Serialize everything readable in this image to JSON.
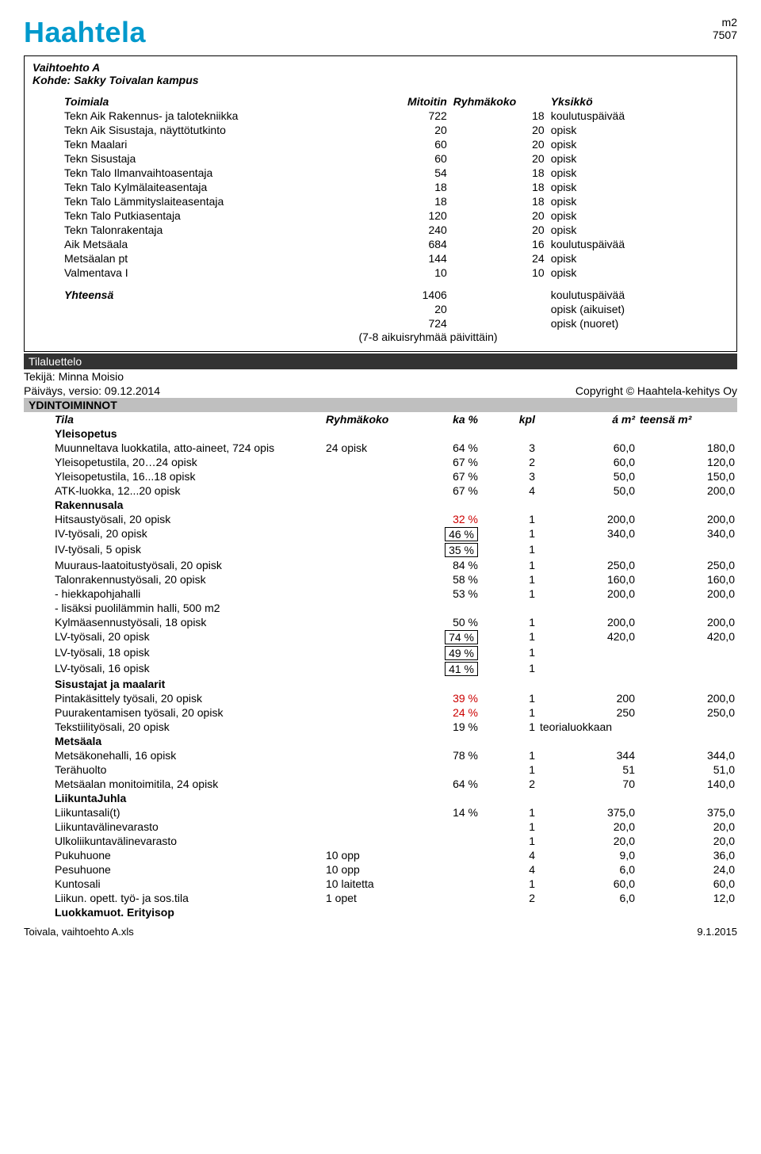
{
  "header": {
    "logo": "Haahtela",
    "logo_color": "#0099cc",
    "top_right_line1": "m2",
    "top_right_line2": "7507"
  },
  "project": {
    "option": "Vaihtoehto A",
    "target_label": "Kohde: Sakky Toivalan kampus"
  },
  "top_table": {
    "col_headers": [
      "Toimiala",
      "Mitoitin",
      "Ryhmäkoko",
      "Yksikkö"
    ],
    "rows": [
      {
        "name": "Tekn Aik Rakennus- ja talotekniikka",
        "mitoitin": "722",
        "ryhma": "18",
        "yksikko": "koulutuspäivää"
      },
      {
        "name": "Tekn Aik Sisustaja, näyttötutkinto",
        "mitoitin": "20",
        "ryhma": "20",
        "yksikko": "opisk"
      },
      {
        "name": "Tekn Maalari",
        "mitoitin": "60",
        "ryhma": "20",
        "yksikko": "opisk"
      },
      {
        "name": "Tekn Sisustaja",
        "mitoitin": "60",
        "ryhma": "20",
        "yksikko": "opisk"
      },
      {
        "name": "Tekn Talo Ilmanvaihtoasentaja",
        "mitoitin": "54",
        "ryhma": "18",
        "yksikko": "opisk"
      },
      {
        "name": "Tekn Talo Kylmälaiteasentaja",
        "mitoitin": "18",
        "ryhma": "18",
        "yksikko": "opisk"
      },
      {
        "name": "Tekn Talo Lämmityslaiteasentaja",
        "mitoitin": "18",
        "ryhma": "18",
        "yksikko": "opisk"
      },
      {
        "name": "Tekn Talo Putkiasentaja",
        "mitoitin": "120",
        "ryhma": "20",
        "yksikko": "opisk"
      },
      {
        "name": "Tekn Talonrakentaja",
        "mitoitin": "240",
        "ryhma": "20",
        "yksikko": "opisk"
      },
      {
        "name": "Aik Metsäala",
        "mitoitin": "684",
        "ryhma": "16",
        "yksikko": "koulutuspäivää"
      },
      {
        "name": "Metsäalan pt",
        "mitoitin": "144",
        "ryhma": "24",
        "yksikko": "opisk"
      },
      {
        "name": "Valmentava I",
        "mitoitin": "10",
        "ryhma": "10",
        "yksikko": "opisk"
      }
    ],
    "summary": [
      {
        "label": "Yhteensä",
        "mitoitin": "1406",
        "ryhma": "",
        "yksikko": "koulutuspäivää"
      },
      {
        "label": "",
        "mitoitin": "20",
        "ryhma": "",
        "yksikko": "opisk (aikuiset)"
      },
      {
        "label": "",
        "mitoitin": "724",
        "ryhma": "",
        "yksikko": "opisk (nuoret)"
      }
    ],
    "note": "(7-8 aikuisryhmää päivittäin)"
  },
  "bands": {
    "tilaluettelo": "Tilaluettelo",
    "author_label": "Tekijä: Minna Moisio",
    "date_label": "Päiväys, versio: 09.12.2014",
    "copyright": "Copyright © Haahtela-kehitys Oy",
    "ydin": "YDINTOIMINNOT"
  },
  "hdr2": {
    "tila": "Tila",
    "ryhma": "Ryhmäkoko",
    "ka": "ka %",
    "kpl": "kpl",
    "am2": "á m²",
    "tot": "teensä m²"
  },
  "groups": [
    {
      "title": "Yleisopetus",
      "rows": [
        {
          "name": "Muunneltava luokkatila, atto-aineet, 724 opis",
          "ryhma": "24 opisk",
          "ka": "64 %",
          "kpl": "3",
          "am2": "60,0",
          "tot": "180,0"
        },
        {
          "name": "Yleisopetustila, 20…24 opisk",
          "ka": "67 %",
          "kpl": "2",
          "am2": "60,0",
          "tot": "120,0"
        },
        {
          "name": "Yleisopetustila, 16...18 opisk",
          "ka": "67 %",
          "kpl": "3",
          "am2": "50,0",
          "tot": "150,0"
        },
        {
          "name": "ATK-luokka, 12...20 opisk",
          "ka": "67 %",
          "kpl": "4",
          "am2": "50,0",
          "tot": "200,0"
        }
      ]
    },
    {
      "title": "Rakennusala",
      "rows": [
        {
          "name": "Hitsaustyösali, 20 opisk",
          "ka": "32 %",
          "ka_red": true,
          "kpl": "1",
          "am2": "200,0",
          "tot": "200,0"
        },
        {
          "name": "IV-työsali, 20 opisk",
          "ka": "46 %",
          "ka_box": true,
          "kpl": "1",
          "am2": "340,0",
          "tot": "340,0"
        },
        {
          "name": "IV-työsali, 5 opisk",
          "ka": "35 %",
          "ka_box": true,
          "kpl": "1"
        },
        {
          "name": "Muuraus-laatoitustyösali, 20 opisk",
          "ka": "84 %",
          "kpl": "1",
          "am2": "250,0",
          "tot": "250,0"
        },
        {
          "name": "Talonrakennustyösali, 20 opisk",
          "ka": "58 %",
          "kpl": "1",
          "am2": "160,0",
          "tot": "160,0"
        },
        {
          "name": " - hiekkapohjahalli",
          "ka": "53 %",
          "kpl": "1",
          "am2": "200,0",
          "tot": "200,0"
        },
        {
          "name": " - lisäksi puolilämmin halli, 500 m2"
        },
        {
          "name": "Kylmäasennustyösali, 18 opisk",
          "ka": "50 %",
          "kpl": "1",
          "am2": "200,0",
          "tot": "200,0"
        },
        {
          "name": "LV-työsali, 20 opisk",
          "ka": "74 %",
          "ka_box": true,
          "kpl": "1",
          "am2": "420,0",
          "tot": "420,0"
        },
        {
          "name": "LV-työsali, 18 opisk",
          "ka": "49 %",
          "ka_box": true,
          "kpl": "1"
        },
        {
          "name": "LV-työsali, 16 opisk",
          "ka": "41 %",
          "ka_box": true,
          "kpl": "1"
        }
      ]
    },
    {
      "title": "Sisustajat ja maalarit",
      "rows": [
        {
          "name": "Pintakäsittely työsali, 20 opisk",
          "ka": "39 %",
          "ka_red": true,
          "kpl": "1",
          "am2": "200",
          "tot": "200,0"
        },
        {
          "name": "Puurakentamisen työsali, 20 opisk",
          "ka": "24 %",
          "ka_red": true,
          "kpl": "1",
          "am2": "250",
          "tot": "250,0"
        },
        {
          "name": "Tekstiilityösali, 20 opisk",
          "ka": "19 %",
          "kpl": "1",
          "am2_text": "teorialuokkaan"
        }
      ]
    },
    {
      "title": "Metsäala",
      "rows": [
        {
          "name": "Metsäkonehalli, 16 opisk",
          "ka": "78 %",
          "kpl": "1",
          "am2": "344",
          "tot": "344,0"
        },
        {
          "name": "Terähuolto",
          "kpl": "1",
          "am2": "51",
          "tot": "51,0"
        },
        {
          "name": "Metsäalan monitoimitila, 24 opisk",
          "ka": "64 %",
          "kpl": "2",
          "am2": "70",
          "tot": "140,0"
        }
      ]
    },
    {
      "title": "LiikuntaJuhla",
      "rows": [
        {
          "name": "Liikuntasali(t)",
          "ka": "14 %",
          "kpl": "1",
          "am2": "375,0",
          "tot": "375,0"
        },
        {
          "name": "Liikuntavälinevarasto",
          "kpl": "1",
          "am2": "20,0",
          "tot": "20,0"
        },
        {
          "name": "Ulkoliikuntavälinevarasto",
          "kpl": "1",
          "am2": "20,0",
          "tot": "20,0"
        },
        {
          "name": "Pukuhuone",
          "ryhma": "10 opp",
          "kpl": "4",
          "am2": "9,0",
          "tot": "36,0"
        },
        {
          "name": "Pesuhuone",
          "ryhma": "10 opp",
          "kpl": "4",
          "am2": "6,0",
          "tot": "24,0"
        },
        {
          "name": "Kuntosali",
          "ryhma": "10 laitetta",
          "kpl": "1",
          "am2": "60,0",
          "tot": "60,0"
        },
        {
          "name": "Liikun. opett. työ- ja sos.tila",
          "ryhma": "1 opet",
          "kpl": "2",
          "am2": "6,0",
          "tot": "12,0"
        }
      ]
    },
    {
      "title": "Luokkamuot. Erityisop",
      "rows": []
    }
  ],
  "footer": {
    "left": "Toivala, vaihtoehto A.xls",
    "right": "9.1.2015"
  }
}
